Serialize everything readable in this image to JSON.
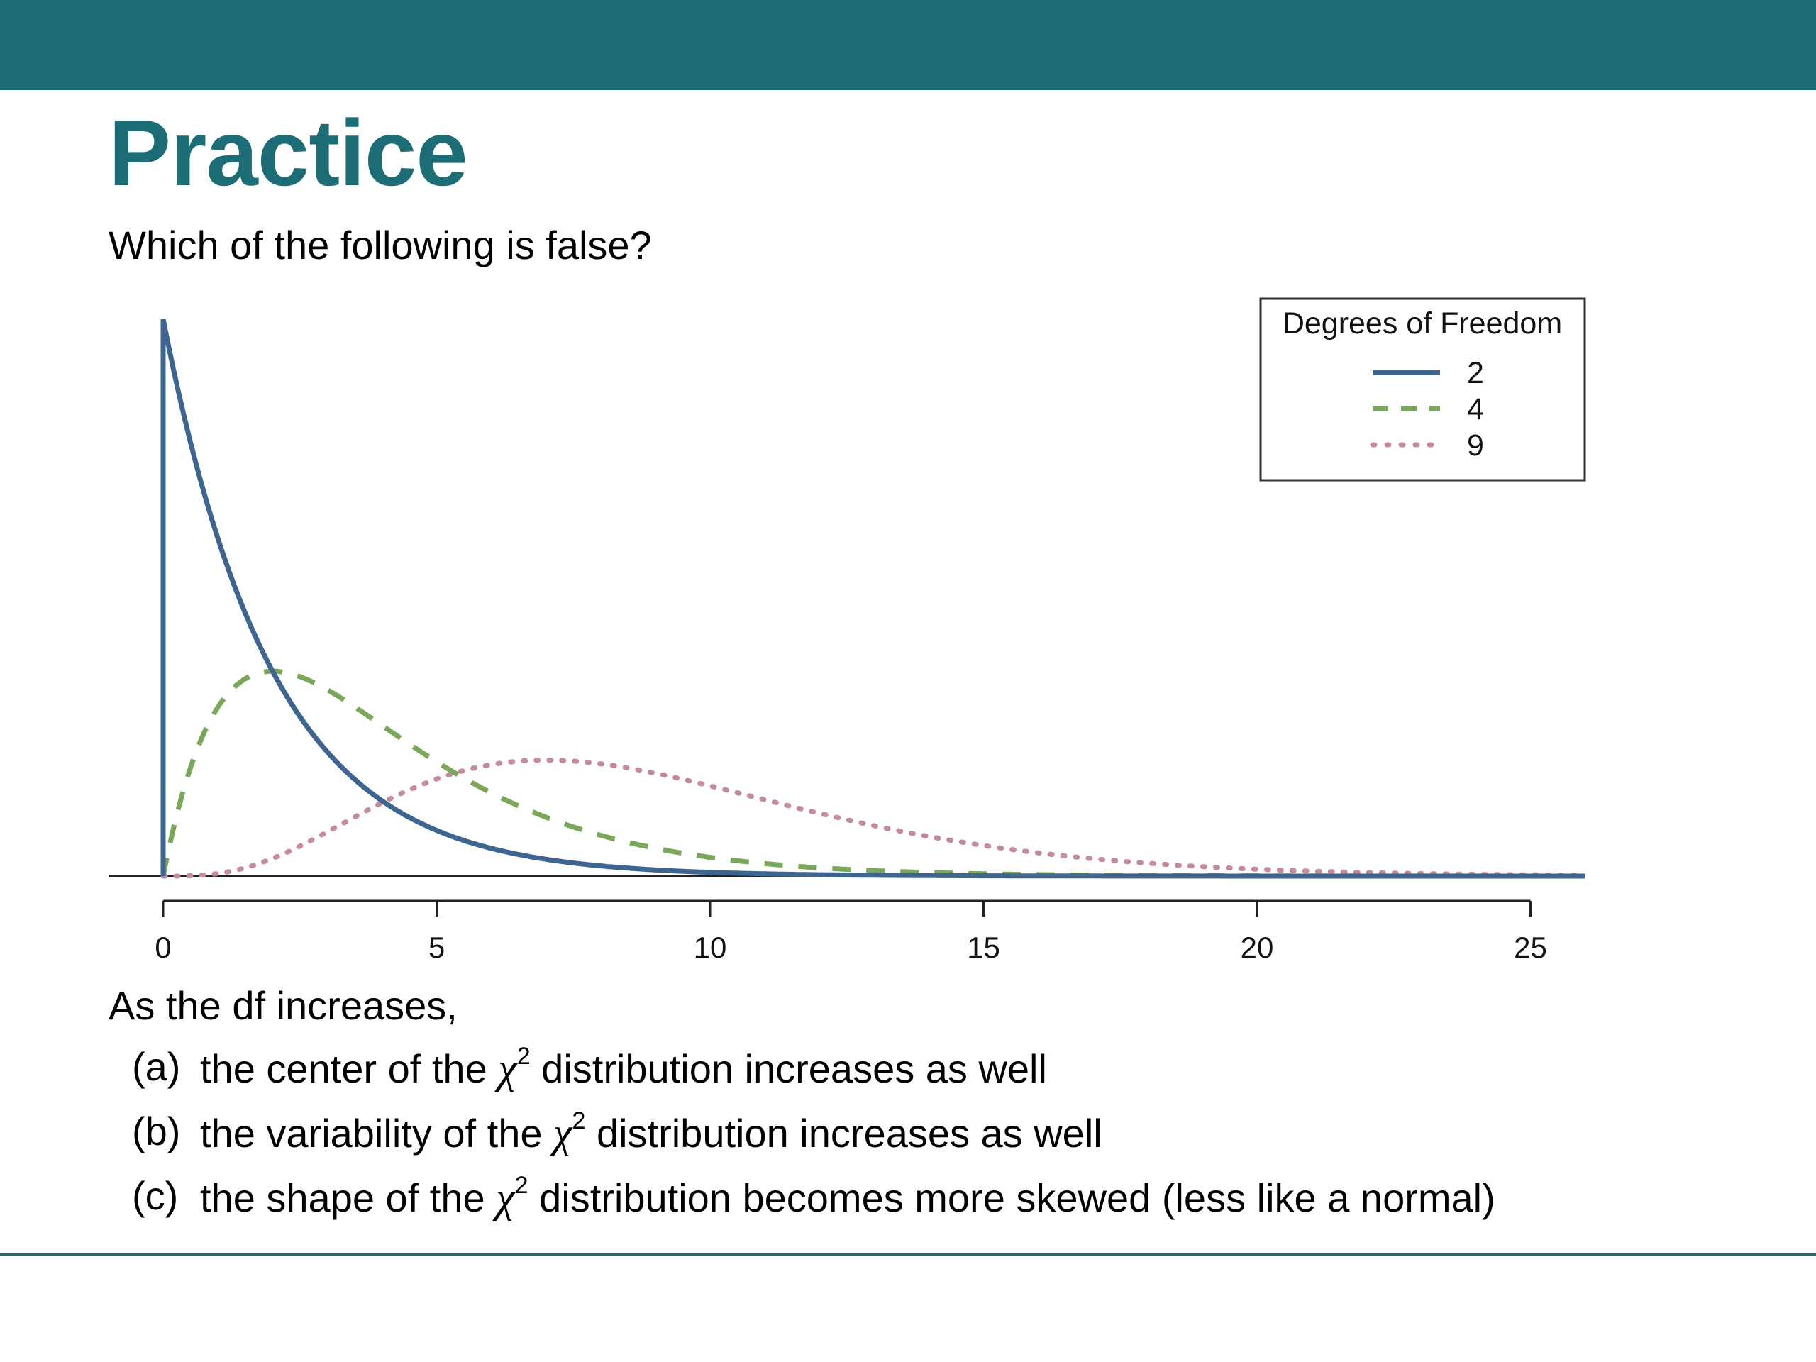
{
  "slide": {
    "title": "Practice",
    "question": "Which of the following is false?",
    "options_intro": "As the df increases,",
    "options": [
      {
        "letter": "(a)",
        "before": "the center of the",
        "symbol": "χ",
        "power": "2",
        "after": "distribution increases as well"
      },
      {
        "letter": "(b)",
        "before": "the variability of the",
        "symbol": "χ",
        "power": "2",
        "after": "distribution increases as well"
      },
      {
        "letter": "(c)",
        "before": "the shape of the",
        "symbol": "χ",
        "power": "2",
        "after": "distribution becomes more skewed (less like a normal)"
      }
    ],
    "colors": {
      "theme": "#1c6d75",
      "background": "#ffffff",
      "text": "#000000"
    }
  },
  "chart_data": {
    "type": "line",
    "title": "",
    "xlabel": "",
    "ylabel": "",
    "xlim": [
      0,
      26
    ],
    "x_ticks": [
      0,
      5,
      10,
      15,
      20,
      25
    ],
    "grid": false,
    "legend": {
      "title": "Degrees of Freedom",
      "position": "top-right"
    },
    "series": [
      {
        "name": "2",
        "df": 2,
        "color": "#3d6590",
        "style": "solid"
      },
      {
        "name": "4",
        "df": 4,
        "color": "#7aa75a",
        "style": "dashed"
      },
      {
        "name": "9",
        "df": 9,
        "color": "#c48a9e",
        "style": "dotted"
      }
    ]
  }
}
